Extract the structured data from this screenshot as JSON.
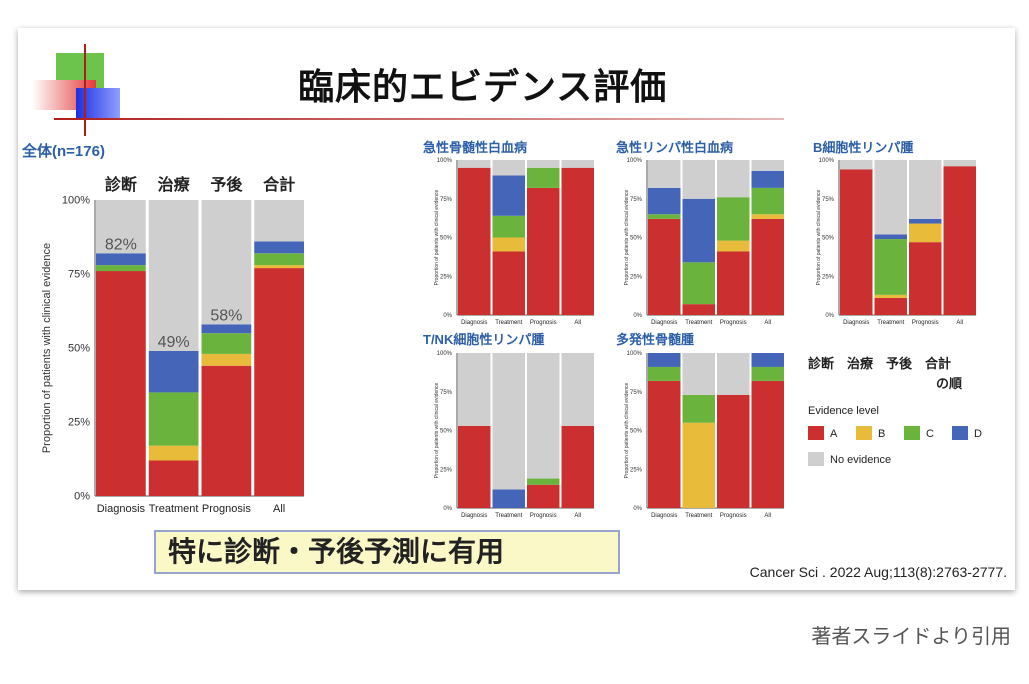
{
  "slide": {
    "title": "臨床的エビデンス評価",
    "highlight": "特に診断・予後予測に有用",
    "citation": "Cancer Sci . 2022 Aug;113(8):2763-2777."
  },
  "caption": "著者スライドより引用",
  "legend": {
    "header1": "診断　治療　予後　合計",
    "header2": "の順",
    "title": "Evidence level",
    "items": [
      {
        "label": "A",
        "color": "#cc2f2f"
      },
      {
        "label": "B",
        "color": "#e8bb3a"
      },
      {
        "label": "C",
        "color": "#6ab43e"
      },
      {
        "label": "D",
        "color": "#4566b8"
      },
      {
        "label": "No evidence",
        "color": "#cfcfcf"
      }
    ]
  },
  "chart_data": [
    {
      "type": "bar",
      "stacked": true,
      "title": "全体(n=176)",
      "column_headers": [
        "診断",
        "治療",
        "予後",
        "合計"
      ],
      "categories": [
        "Diagnosis",
        "Treatment",
        "Prognosis",
        "All"
      ],
      "ylabel": "Proportion of patients with clinical evidence",
      "yticks": [
        "0%",
        "25%",
        "50%",
        "75%",
        "100%"
      ],
      "ylim": [
        0,
        100
      ],
      "bar_labels": [
        "82%",
        "49%",
        "58%",
        ""
      ],
      "series": [
        {
          "name": "A",
          "values": [
            76,
            12,
            44,
            77
          ]
        },
        {
          "name": "B",
          "values": [
            0,
            5,
            4,
            1
          ]
        },
        {
          "name": "C",
          "values": [
            2,
            18,
            7,
            4
          ]
        },
        {
          "name": "D",
          "values": [
            4,
            14,
            3,
            4
          ]
        },
        {
          "name": "No evidence",
          "values": [
            18,
            51,
            42,
            14
          ]
        }
      ]
    },
    {
      "type": "bar",
      "stacked": true,
      "title": "急性骨髄性白血病",
      "categories": [
        "Diagnosis",
        "Treatment",
        "Prognosis",
        "All"
      ],
      "ylabel": "Proportion of patients with clinical evidence",
      "yticks": [
        "0%",
        "25%",
        "50%",
        "75%",
        "100%"
      ],
      "ylim": [
        0,
        100
      ],
      "series": [
        {
          "name": "A",
          "values": [
            95,
            41,
            82,
            95
          ]
        },
        {
          "name": "B",
          "values": [
            0,
            9,
            0,
            0
          ]
        },
        {
          "name": "C",
          "values": [
            0,
            14,
            13,
            0
          ]
        },
        {
          "name": "D",
          "values": [
            0,
            26,
            0,
            0
          ]
        },
        {
          "name": "No evidence",
          "values": [
            5,
            10,
            5,
            5
          ]
        }
      ]
    },
    {
      "type": "bar",
      "stacked": true,
      "title": "急性リンパ性白血病",
      "categories": [
        "Diagnosis",
        "Treatment",
        "Prognosis",
        "All"
      ],
      "ylabel": "Proportion of patients with clinical evidence",
      "yticks": [
        "0%",
        "25%",
        "50%",
        "75%",
        "100%"
      ],
      "ylim": [
        0,
        100
      ],
      "series": [
        {
          "name": "A",
          "values": [
            62,
            7,
            41,
            62
          ]
        },
        {
          "name": "B",
          "values": [
            0,
            0,
            7,
            3
          ]
        },
        {
          "name": "C",
          "values": [
            3,
            27,
            28,
            17
          ]
        },
        {
          "name": "D",
          "values": [
            17,
            41,
            0,
            11
          ]
        },
        {
          "name": "No evidence",
          "values": [
            18,
            25,
            24,
            7
          ]
        }
      ]
    },
    {
      "type": "bar",
      "stacked": true,
      "title": "B細胞性リンパ腫",
      "categories": [
        "Diagnosis",
        "Treatment",
        "Prognosis",
        "All"
      ],
      "ylabel": "Proportion of patients with clinical evidence",
      "yticks": [
        "0%",
        "25%",
        "50%",
        "75%",
        "100%"
      ],
      "ylim": [
        0,
        100
      ],
      "series": [
        {
          "name": "A",
          "values": [
            94,
            11,
            47,
            96
          ]
        },
        {
          "name": "B",
          "values": [
            0,
            2,
            12,
            0
          ]
        },
        {
          "name": "C",
          "values": [
            0,
            36,
            0,
            0
          ]
        },
        {
          "name": "D",
          "values": [
            0,
            3,
            3,
            0
          ]
        },
        {
          "name": "No evidence",
          "values": [
            6,
            48,
            38,
            4
          ]
        }
      ]
    },
    {
      "type": "bar",
      "stacked": true,
      "title": "T/NK細胞性リンパ腫",
      "categories": [
        "Diagnosis",
        "Treatment",
        "Prognosis",
        "All"
      ],
      "ylabel": "Proportion of patients with clinical evidence",
      "yticks": [
        "0%",
        "25%",
        "50%",
        "75%",
        "100%"
      ],
      "ylim": [
        0,
        100
      ],
      "series": [
        {
          "name": "A",
          "values": [
            53,
            0,
            15,
            53
          ]
        },
        {
          "name": "B",
          "values": [
            0,
            0,
            0,
            0
          ]
        },
        {
          "name": "C",
          "values": [
            0,
            0,
            4,
            0
          ]
        },
        {
          "name": "D",
          "values": [
            0,
            12,
            0,
            0
          ]
        },
        {
          "name": "No evidence",
          "values": [
            47,
            88,
            81,
            47
          ]
        }
      ]
    },
    {
      "type": "bar",
      "stacked": true,
      "title": "多発性骨髄腫",
      "categories": [
        "Diagnosis",
        "Treatment",
        "Prognosis",
        "All"
      ],
      "ylabel": "Proportion of patients with clinical evidence",
      "yticks": [
        "0%",
        "25%",
        "50%",
        "75%",
        "100%"
      ],
      "ylim": [
        0,
        100
      ],
      "series": [
        {
          "name": "A",
          "values": [
            82,
            0,
            73,
            82
          ]
        },
        {
          "name": "B",
          "values": [
            0,
            55,
            0,
            0
          ]
        },
        {
          "name": "C",
          "values": [
            9,
            18,
            0,
            9
          ]
        },
        {
          "name": "D",
          "values": [
            9,
            0,
            0,
            9
          ]
        },
        {
          "name": "No evidence",
          "values": [
            0,
            27,
            27,
            0
          ]
        }
      ]
    }
  ]
}
